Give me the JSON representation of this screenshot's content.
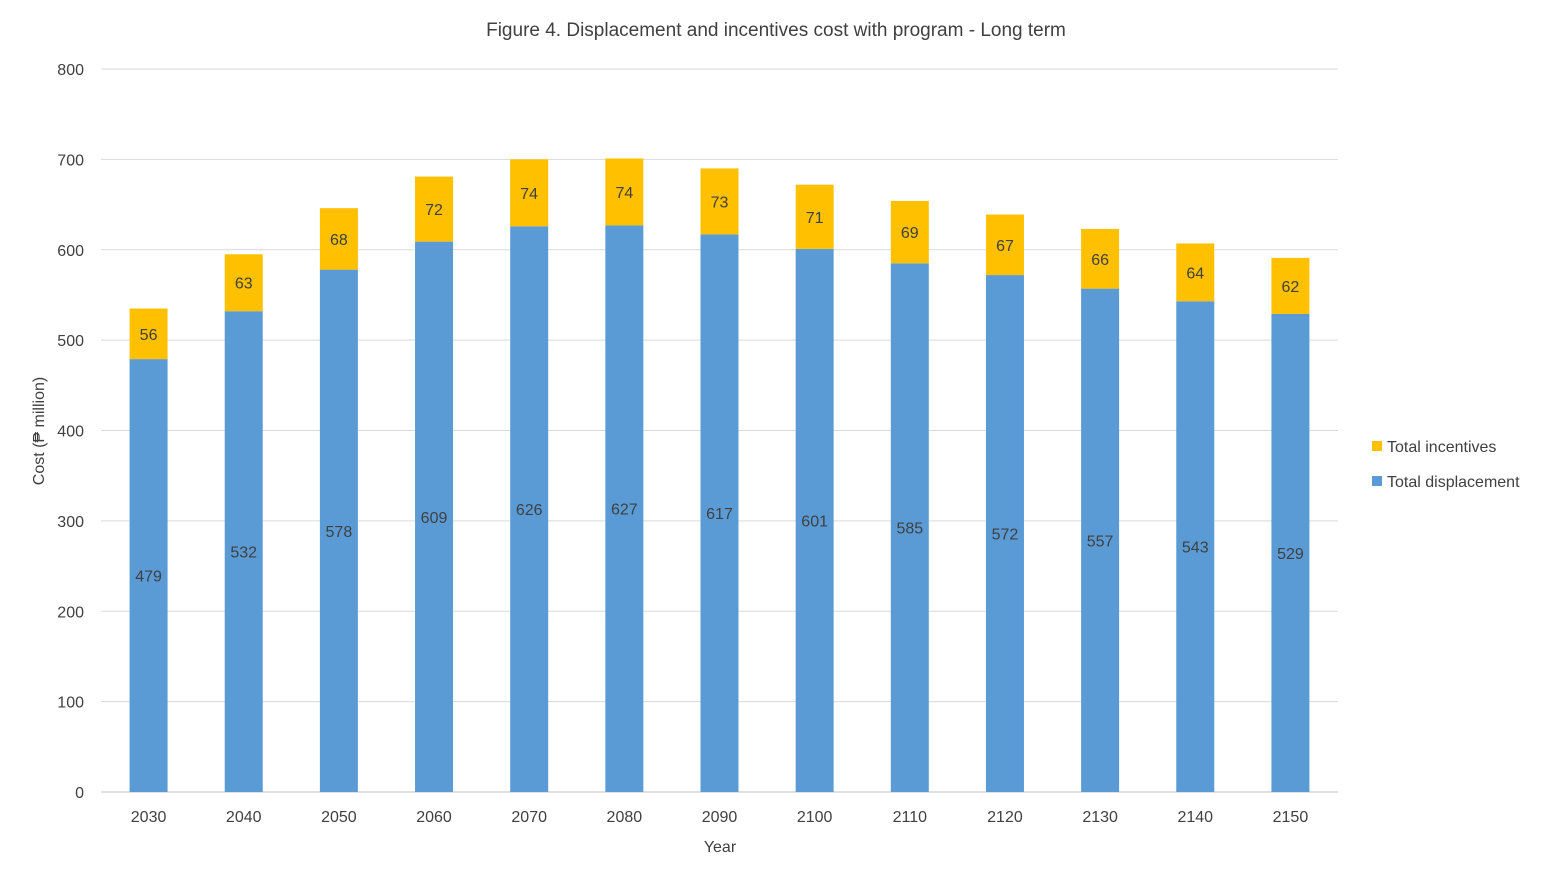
{
  "chart_data": {
    "type": "bar",
    "stacked": true,
    "title": "Figure 4. Displacement and incentives cost with program - Long term",
    "xlabel": "Year",
    "ylabel": "Cost (₱ million)",
    "ylim": [
      0,
      800
    ],
    "yticks": [
      0,
      100,
      200,
      300,
      400,
      500,
      600,
      700,
      800
    ],
    "grid": true,
    "legend_position": "right",
    "categories": [
      "2030",
      "2040",
      "2050",
      "2060",
      "2070",
      "2080",
      "2090",
      "2100",
      "2110",
      "2120",
      "2130",
      "2140",
      "2150"
    ],
    "series": [
      {
        "name": "Total displacement",
        "color": "#5b9bd5",
        "values": [
          479,
          532,
          578,
          609,
          626,
          627,
          617,
          601,
          585,
          572,
          557,
          543,
          529
        ]
      },
      {
        "name": "Total incentives",
        "color": "#ffc000",
        "values": [
          56,
          63,
          68,
          72,
          74,
          74,
          73,
          71,
          69,
          67,
          66,
          64,
          62
        ]
      }
    ]
  }
}
